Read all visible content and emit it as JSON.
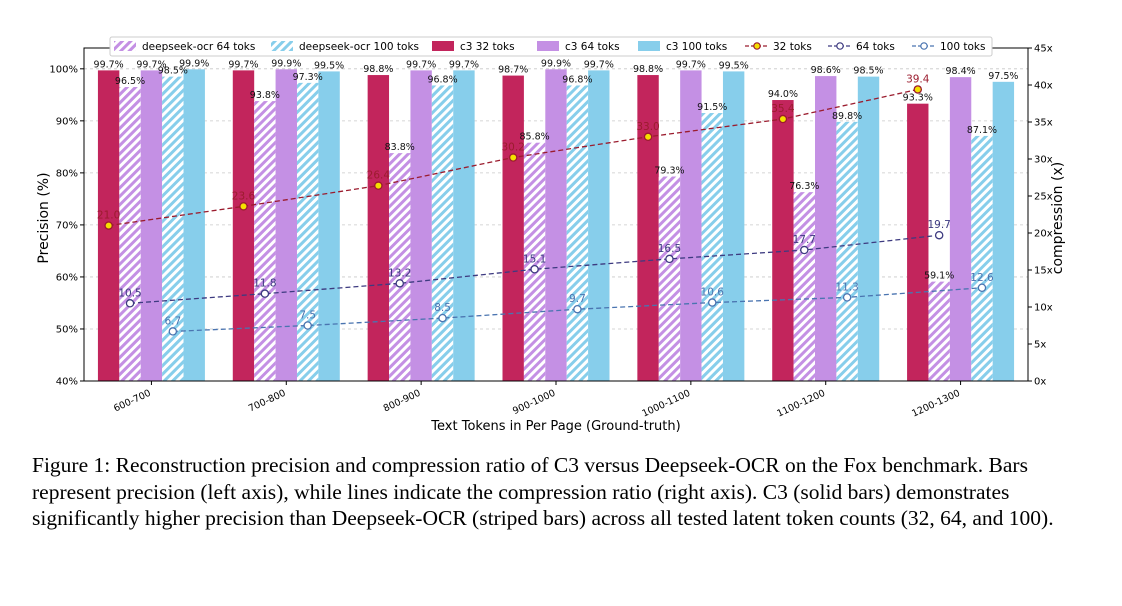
{
  "chart_data": {
    "type": "bar",
    "categories": [
      "600-700",
      "700-800",
      "800-900",
      "900-1000",
      "1000-1100",
      "1100-1200",
      "1200-1300"
    ],
    "xlabel": "Text Tokens in Per Page (Ground-truth)",
    "ylabel": "Precision (%)",
    "y2label": "compression (x)",
    "ylim": [
      40,
      104
    ],
    "y2lim": [
      0,
      45
    ],
    "yticks": [
      40,
      50,
      60,
      70,
      80,
      90,
      100
    ],
    "ytick_labels": [
      "40%",
      "50%",
      "60%",
      "70%",
      "80%",
      "90%",
      "100%"
    ],
    "y2ticks": [
      0,
      5,
      10,
      15,
      20,
      25,
      30,
      35,
      40,
      45
    ],
    "y2tick_labels": [
      "0x",
      "5x",
      "10x",
      "15x",
      "20x",
      "25x",
      "30x",
      "35x",
      "40x",
      "45x"
    ],
    "grid": true,
    "legend_position": "top",
    "bar_series": [
      {
        "name": "c3 32 toks",
        "style": "solid",
        "color": "#c2255c",
        "values": [
          99.7,
          99.7,
          98.8,
          98.7,
          98.8,
          94.0,
          93.3
        ],
        "labels": [
          "99.7%",
          "99.7%",
          "98.8%",
          "98.7%",
          "98.8%",
          "94.0%",
          "93.3%"
        ]
      },
      {
        "name": "deepseek-ocr 64 toks",
        "style": "striped",
        "color": "#c490e4",
        "values": [
          96.5,
          93.8,
          83.8,
          85.8,
          79.3,
          76.3,
          59.1
        ],
        "labels": [
          "96.5%",
          "93.8%",
          "83.8%",
          "85.8%",
          "79.3%",
          "76.3%",
          "59.1%"
        ]
      },
      {
        "name": "c3 64 toks",
        "style": "solid",
        "color": "#c490e4",
        "values": [
          99.7,
          99.9,
          99.7,
          99.9,
          99.7,
          98.6,
          98.4
        ],
        "labels": [
          "99.7%",
          "99.9%",
          "99.7%",
          "99.9%",
          "99.7%",
          "98.6%",
          "98.4%"
        ]
      },
      {
        "name": "deepseek-ocr 100 toks",
        "style": "striped",
        "color": "#87ceeb",
        "values": [
          98.5,
          97.3,
          96.8,
          96.8,
          91.5,
          89.8,
          87.1
        ],
        "labels": [
          "98.5%",
          "97.3%",
          "96.8%",
          "96.8%",
          "91.5%",
          "89.8%",
          "87.1%"
        ]
      },
      {
        "name": "c3 100 toks",
        "style": "solid",
        "color": "#87ceeb",
        "values": [
          99.9,
          99.5,
          99.7,
          99.7,
          99.5,
          98.5,
          97.5
        ],
        "labels": [
          "99.9%",
          "99.5%",
          "99.7%",
          "99.7%",
          "99.5%",
          "98.5%",
          "97.5%"
        ]
      }
    ],
    "line_series": [
      {
        "name": "32 toks",
        "color": "#9b1c2e",
        "fill": "#f5e000",
        "values": [
          21.0,
          23.6,
          26.4,
          30.2,
          33.0,
          35.4,
          39.4
        ],
        "labels": [
          "21.0",
          "23.6",
          "26.4",
          "30.2",
          "33.0",
          "35.4",
          "39.4"
        ]
      },
      {
        "name": "64 toks",
        "color": "#3d3a80",
        "fill": "#ffffff",
        "values": [
          10.5,
          11.8,
          13.2,
          15.1,
          16.5,
          17.7,
          19.7
        ],
        "labels": [
          "10.5",
          "11.8",
          "13.2",
          "15.1",
          "16.5",
          "17.7",
          "19.7"
        ]
      },
      {
        "name": "100 toks",
        "color": "#4a74b0",
        "fill": "#ffffff",
        "values": [
          6.7,
          7.5,
          8.5,
          9.7,
          10.6,
          11.3,
          12.6
        ],
        "labels": [
          "6.7",
          "7.5",
          "8.5",
          "9.7",
          "10.6",
          "11.3",
          "12.6"
        ]
      }
    ],
    "legend": [
      "deepseek-ocr 64 toks",
      "deepseek-ocr 100 toks",
      "c3 32 toks",
      "c3 64 toks",
      "c3 100 toks",
      "32 toks",
      "64 toks",
      "100 toks"
    ]
  },
  "caption": "Figure 1: Reconstruction precision and compression ratio of C3 versus Deepseek-OCR on the Fox benchmark. Bars represent precision (left axis), while lines indicate the compression ratio (right axis). C3 (solid bars) demonstrates significantly higher precision than Deepseek-OCR (striped bars) across all tested latent token counts (32, 64, and 100)."
}
